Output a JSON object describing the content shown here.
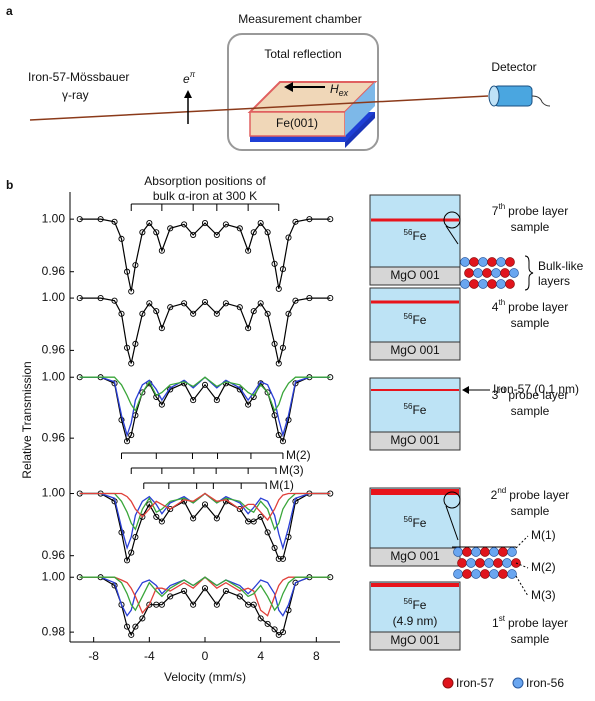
{
  "panel_a": {
    "label": "a",
    "chamber": "Measurement chamber",
    "reflection": "Total reflection",
    "source_line1": "Iron-57-Mössbauer",
    "source_line2": "γ-ray",
    "polarization": "e",
    "polarization_sup": "π",
    "field": "H",
    "field_sub": "ex",
    "crystal": "Fe(001)",
    "detector": "Detector"
  },
  "panel_b_label": "b",
  "chart_data": [
    {
      "type": "line",
      "ylabel": "Relative Transmission",
      "annotation": [
        "Absorption positions of",
        "bulk α-iron at 300 K"
      ],
      "absorption_positions": [
        -5.3,
        -3.1,
        -0.85,
        0.85,
        3.1,
        5.3
      ],
      "xlim": [
        -9.7,
        9.7
      ],
      "ylim": [
        0.94,
        1.01
      ],
      "yticks": [
        {
          "value": 1,
          "label": "1.00"
        },
        {
          "value": 0.96,
          "label": "0.96"
        }
      ],
      "x": [
        -9,
        -7.5,
        -6.5,
        -6,
        -5.6,
        -5.3,
        -5,
        -4.5,
        -4,
        -3.5,
        -3.1,
        -2.5,
        -1.5,
        -0.85,
        0,
        0.85,
        1.5,
        2.5,
        3.1,
        3.5,
        4,
        4.5,
        5,
        5.3,
        5.6,
        6,
        6.5,
        7.5,
        9
      ],
      "series": [
        {
          "color": "#000000",
          "marker": "circle",
          "values": [
            1,
            1,
            0.998,
            0.985,
            0.96,
            0.945,
            0.965,
            0.99,
            0.997,
            0.99,
            0.976,
            0.993,
            0.996,
            0.988,
            0.997,
            0.988,
            0.996,
            0.993,
            0.976,
            0.99,
            0.997,
            0.99,
            0.966,
            0.947,
            0.962,
            0.986,
            0.998,
            1,
            1
          ]
        }
      ]
    },
    {
      "type": "line",
      "xlim": [
        -9.7,
        9.7
      ],
      "ylim": [
        0.945,
        1.01
      ],
      "yticks": [
        {
          "value": 1,
          "label": "1.00"
        },
        {
          "value": 0.96,
          "label": "0.96"
        }
      ],
      "x": [
        -9,
        -7.5,
        -6.5,
        -6,
        -5.6,
        -5.3,
        -5,
        -4.5,
        -4,
        -3.5,
        -3.1,
        -2.5,
        -1.5,
        -0.85,
        0,
        0.85,
        1.5,
        2.5,
        3.1,
        3.5,
        4,
        4.5,
        5,
        5.3,
        5.6,
        6,
        6.5,
        7.5,
        9
      ],
      "series": [
        {
          "color": "#000000",
          "marker": "circle",
          "values": [
            1,
            1,
            0.998,
            0.988,
            0.962,
            0.95,
            0.965,
            0.988,
            0.996,
            0.99,
            0.977,
            0.993,
            0.996,
            0.988,
            0.997,
            0.988,
            0.996,
            0.993,
            0.977,
            0.99,
            0.996,
            0.988,
            0.965,
            0.95,
            0.962,
            0.988,
            0.998,
            1,
            1
          ]
        }
      ]
    },
    {
      "type": "line",
      "subspectra": [
        {
          "label": "M(2)",
          "positions": [
            -6,
            -3.5,
            -0.9,
            0.9,
            3.3,
            5.6
          ]
        },
        {
          "label": "M(3)",
          "positions": [
            -5.3,
            -3.1,
            -0.8,
            0.8,
            3.1,
            5.1
          ]
        },
        {
          "label": "M(1)",
          "positions": [
            -4.4,
            -2.6,
            -0.6,
            0.6,
            2.6,
            4.4
          ]
        }
      ],
      "xlim": [
        -9.7,
        9.7
      ],
      "ylim": [
        0.945,
        1.01
      ],
      "yticks": [
        {
          "value": 1,
          "label": "1.00"
        },
        {
          "value": 0.96,
          "label": "0.96"
        }
      ],
      "x": [
        -9,
        -7.5,
        -6.5,
        -6,
        -5.6,
        -5.3,
        -5,
        -4.5,
        -4,
        -3.5,
        -3.1,
        -2.5,
        -1.5,
        -0.85,
        0,
        0.85,
        1.5,
        2.5,
        3.1,
        3.5,
        4,
        4.5,
        5,
        5.3,
        5.6,
        6,
        6.5,
        7.5,
        9
      ],
      "series": [
        {
          "color": "#000000",
          "marker": "circle",
          "values": [
            1,
            1,
            0.996,
            0.972,
            0.958,
            0.962,
            0.975,
            0.99,
            0.996,
            0.987,
            0.982,
            0.992,
            0.996,
            0.985,
            0.995,
            0.985,
            0.996,
            0.992,
            0.982,
            0.987,
            0.996,
            0.99,
            0.975,
            0.962,
            0.958,
            0.972,
            0.996,
            1,
            1
          ]
        },
        {
          "color": "#2a3fd6",
          "values": [
            1,
            1,
            0.997,
            0.975,
            0.962,
            0.97,
            0.985,
            0.995,
            0.998,
            0.992,
            0.985,
            0.993,
            0.998,
            0.993,
            1,
            0.993,
            0.998,
            0.993,
            0.985,
            0.99,
            0.997,
            0.995,
            0.985,
            0.972,
            0.962,
            0.975,
            0.997,
            1,
            1
          ]
        },
        {
          "color": "#3aa63a",
          "values": [
            1,
            1,
            1,
            0.995,
            0.988,
            0.982,
            0.978,
            0.99,
            0.997,
            0.988,
            0.99,
            0.995,
            0.997,
            0.994,
            1,
            0.994,
            0.997,
            0.995,
            0.99,
            0.988,
            0.995,
            0.99,
            0.978,
            0.982,
            0.99,
            0.996,
            1,
            1,
            1
          ]
        }
      ]
    },
    {
      "type": "line",
      "xlim": [
        -9.7,
        9.7
      ],
      "ylim": [
        0.945,
        1.01
      ],
      "yticks": [
        {
          "value": 1,
          "label": "1.00"
        },
        {
          "value": 0.96,
          "label": "0.96"
        }
      ],
      "x": [
        -9,
        -7.5,
        -6.5,
        -6,
        -5.6,
        -5.3,
        -5,
        -4.5,
        -4,
        -3.5,
        -3.1,
        -2.5,
        -1.5,
        -0.85,
        0,
        0.85,
        1.5,
        2.5,
        3.1,
        3.5,
        4,
        4.5,
        5,
        5.3,
        5.6,
        6,
        6.5,
        7.5,
        9
      ],
      "series": [
        {
          "color": "#000000",
          "marker": "circle",
          "values": [
            1,
            1,
            0.995,
            0.975,
            0.957,
            0.962,
            0.972,
            0.985,
            0.993,
            0.985,
            0.982,
            0.99,
            0.995,
            0.984,
            0.993,
            0.984,
            0.995,
            0.99,
            0.982,
            0.982,
            0.985,
            0.975,
            0.965,
            0.958,
            0.958,
            0.972,
            0.995,
            1,
            1
          ]
        },
        {
          "color": "#2a3fd6",
          "values": [
            1,
            1,
            0.997,
            0.978,
            0.965,
            0.972,
            0.986,
            0.995,
            0.998,
            0.993,
            0.987,
            0.994,
            0.998,
            0.994,
            1,
            0.994,
            0.998,
            0.994,
            0.987,
            0.991,
            0.997,
            0.995,
            0.986,
            0.974,
            0.965,
            0.978,
            0.997,
            1,
            1
          ]
        },
        {
          "color": "#3aa63a",
          "values": [
            1,
            1,
            1,
            0.995,
            0.988,
            0.981,
            0.977,
            0.99,
            0.997,
            0.988,
            0.99,
            0.995,
            0.997,
            0.994,
            1,
            0.994,
            0.997,
            0.995,
            0.99,
            0.988,
            0.995,
            0.99,
            0.977,
            0.981,
            0.99,
            0.996,
            1,
            1,
            1
          ]
        },
        {
          "color": "#e0403a",
          "values": [
            1,
            1,
            1,
            1,
            0.998,
            0.995,
            0.99,
            0.985,
            0.99,
            0.995,
            0.993,
            0.99,
            0.996,
            0.995,
            1,
            0.995,
            0.996,
            0.99,
            0.993,
            0.993,
            0.988,
            0.983,
            0.99,
            0.996,
            0.999,
            1,
            1,
            1,
            1
          ]
        }
      ]
    },
    {
      "type": "line",
      "xlabel": "Velocity (mm/s)",
      "xticks": [
        -8,
        -4,
        0,
        4,
        8
      ],
      "xlim": [
        -9.7,
        9.7
      ],
      "ylim": [
        0.9764,
        1.003
      ],
      "yticks": [
        {
          "value": 1,
          "label": "1.00"
        },
        {
          "value": 0.98,
          "label": "0.98"
        }
      ],
      "x": [
        -9,
        -7.5,
        -6.5,
        -6,
        -5.6,
        -5.3,
        -5,
        -4.5,
        -4,
        -3.5,
        -3.1,
        -2.5,
        -1.5,
        -0.85,
        0,
        0.85,
        1.5,
        2.5,
        3.1,
        3.5,
        4,
        4.5,
        5,
        5.3,
        5.6,
        6,
        6.5,
        7.5,
        9
      ],
      "series": [
        {
          "color": "#000000",
          "marker": "circle",
          "values": [
            1,
            1,
            0.997,
            0.99,
            0.982,
            0.979,
            0.982,
            0.985,
            0.99,
            0.99,
            0.99,
            0.993,
            0.995,
            0.99,
            0.996,
            0.99,
            0.995,
            0.993,
            0.99,
            0.99,
            0.985,
            0.983,
            0.981,
            0.979,
            0.98,
            0.988,
            0.998,
            1,
            1
          ]
        },
        {
          "color": "#2a3fd6",
          "values": [
            1,
            1,
            0.998,
            0.99,
            0.986,
            0.988,
            0.994,
            0.998,
            0.999,
            0.997,
            0.994,
            0.997,
            0.999,
            0.997,
            1,
            0.997,
            0.999,
            0.997,
            0.994,
            0.996,
            0.999,
            0.998,
            0.994,
            0.988,
            0.986,
            0.99,
            0.998,
            1,
            1
          ]
        },
        {
          "color": "#e0403a",
          "values": [
            1,
            1,
            1,
            0.999,
            0.998,
            0.996,
            0.993,
            0.987,
            0.99,
            0.996,
            0.996,
            0.995,
            0.998,
            0.996,
            1,
            0.996,
            0.998,
            0.995,
            0.996,
            0.995,
            0.988,
            0.986,
            0.993,
            0.997,
            0.999,
            1,
            1,
            1,
            1
          ]
        },
        {
          "color": "#3aa63a",
          "values": [
            1,
            1,
            1,
            0.998,
            0.994,
            0.99,
            0.988,
            0.993,
            0.998,
            0.995,
            0.993,
            0.996,
            0.999,
            0.997,
            1,
            0.997,
            0.999,
            0.996,
            0.993,
            0.994,
            0.997,
            0.993,
            0.988,
            0.99,
            0.994,
            0.998,
            1,
            1,
            1
          ]
        }
      ]
    }
  ],
  "samples": [
    {
      "number": "7",
      "ordinal": "th",
      "line1": "probe layer",
      "line2": "sample",
      "fe_mass": "56",
      "fe": "Fe",
      "substrate": "MgO 001"
    },
    {
      "number": "4",
      "ordinal": "th",
      "line1": "probe layer",
      "line2": "sample",
      "fe_mass": "56",
      "fe": "Fe",
      "substrate": "MgO 001"
    },
    {
      "number": "3",
      "ordinal": "rd",
      "line1": "probe layer",
      "line2": "sample",
      "fe_mass": "56",
      "fe": "Fe",
      "substrate": "MgO 001"
    },
    {
      "number": "2",
      "ordinal": "nd",
      "line1": "probe layer",
      "line2": "sample",
      "fe_mass": "56",
      "fe": "Fe",
      "substrate": "MgO 001"
    },
    {
      "number": "1",
      "ordinal": "st",
      "line1": "probe layer",
      "line2": "sample",
      "fe_mass": "56",
      "fe": "Fe",
      "thickness": "(4.9 nm)",
      "substrate": "MgO 001"
    }
  ],
  "bulk_like": [
    "Bulk-like",
    "layers"
  ],
  "probe_marker": "Iron-57 (0.1 nm)",
  "sites": [
    "M(1)",
    "M(2)",
    "M(3)"
  ],
  "legend": [
    "Iron-57",
    "Iron-56"
  ]
}
